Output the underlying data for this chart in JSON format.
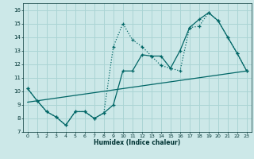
{
  "xlabel": "Humidex (Indice chaleur)",
  "background_color": "#cce8e8",
  "grid_color": "#aad4d4",
  "line_color": "#006666",
  "xlim": [
    -0.5,
    23.5
  ],
  "ylim": [
    7,
    16.5
  ],
  "xticks": [
    0,
    1,
    2,
    3,
    4,
    5,
    6,
    7,
    8,
    9,
    10,
    11,
    12,
    13,
    14,
    15,
    16,
    17,
    18,
    19,
    20,
    21,
    22,
    23
  ],
  "yticks": [
    7,
    8,
    9,
    10,
    11,
    12,
    13,
    14,
    15,
    16
  ],
  "line1_x": [
    0,
    1,
    2,
    3,
    4,
    5,
    6,
    7,
    8,
    9,
    10,
    11,
    12,
    13,
    14,
    15,
    16,
    17,
    18,
    19,
    20,
    21,
    22,
    23
  ],
  "line1_y": [
    10.2,
    9.3,
    8.5,
    8.1,
    7.5,
    8.5,
    8.5,
    8.0,
    8.4,
    13.3,
    15.0,
    13.8,
    13.3,
    12.6,
    11.9,
    11.7,
    11.5,
    14.7,
    14.8,
    15.8,
    15.2,
    14.0,
    12.8,
    11.5
  ],
  "line2_x": [
    0,
    1,
    2,
    3,
    4,
    5,
    6,
    7,
    8,
    9,
    10,
    11,
    12,
    13,
    14,
    15,
    16,
    17,
    18,
    19,
    20,
    21,
    22,
    23
  ],
  "line2_y": [
    10.2,
    9.3,
    8.5,
    8.1,
    7.5,
    8.5,
    8.5,
    8.0,
    8.4,
    9.0,
    11.5,
    11.5,
    12.7,
    12.6,
    12.6,
    11.7,
    13.0,
    14.7,
    15.3,
    15.8,
    15.2,
    14.0,
    12.8,
    11.5
  ],
  "line3_x": [
    0,
    23
  ],
  "line3_y": [
    9.2,
    11.5
  ]
}
